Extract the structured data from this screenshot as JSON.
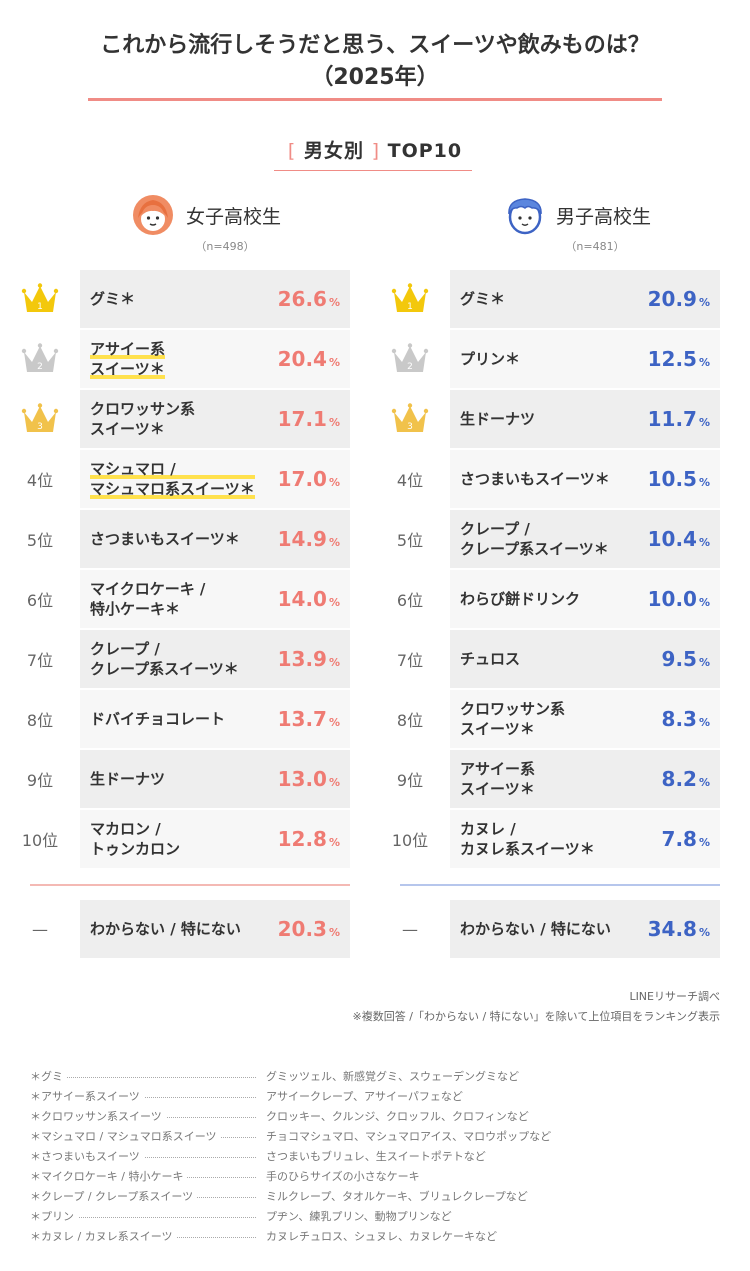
{
  "title_line1": "これから流行しそうだと思う、スイーツや飲みものは？",
  "title_line2": "（2025年）",
  "subhead": {
    "open": "[",
    "label": "男女別",
    "close": "]",
    "rest": "TOP10"
  },
  "colors": {
    "girls": "#ef7b73",
    "boys": "#3d63c4",
    "gold": "#f3c80c",
    "silver": "#c9c9c9",
    "bronze": "#f1c24b"
  },
  "chart_data": [
    {
      "type": "table",
      "title": "女子高校生",
      "n_label": "（n=498）",
      "unit": "%",
      "rows": [
        {
          "rank": "1",
          "rank_icon": "gold-crown-icon",
          "lines": [
            "グミ＊"
          ],
          "value": 26.6
        },
        {
          "rank": "2",
          "rank_icon": "silver-crown-icon",
          "lines": [
            "アサイー系",
            "スイーツ＊"
          ],
          "value": 20.4
        },
        {
          "rank": "3",
          "rank_icon": "bronze-crown-icon",
          "lines": [
            "クロワッサン系",
            "スイーツ＊"
          ],
          "value": 17.1
        },
        {
          "rank": "4位",
          "lines": [
            "マシュマロ /",
            "マシュマロ系スイーツ＊"
          ],
          "value": 17.0
        },
        {
          "rank": "5位",
          "lines": [
            "さつまいもスイーツ＊"
          ],
          "value": 14.9
        },
        {
          "rank": "6位",
          "lines": [
            "マイクロケーキ /",
            "特小ケーキ＊"
          ],
          "value": 14.0
        },
        {
          "rank": "7位",
          "lines": [
            "クレープ /",
            "クレープ系スイーツ＊"
          ],
          "value": 13.9
        },
        {
          "rank": "8位",
          "lines": [
            "ドバイチョコレート"
          ],
          "value": 13.7
        },
        {
          "rank": "9位",
          "lines": [
            "生ドーナツ"
          ],
          "value": 13.0
        },
        {
          "rank": "10位",
          "lines": [
            "マカロン /",
            "トゥンカロン"
          ],
          "value": 12.8
        }
      ],
      "dontknow": {
        "rank": "—",
        "label": "わからない / 特にない",
        "value": 20.3
      }
    },
    {
      "type": "table",
      "title": "男子高校生",
      "n_label": "（n=481）",
      "unit": "%",
      "rows": [
        {
          "rank": "1",
          "rank_icon": "gold-crown-icon",
          "lines": [
            "グミ＊"
          ],
          "value": 20.9
        },
        {
          "rank": "2",
          "rank_icon": "silver-crown-icon",
          "lines": [
            "プリン＊"
          ],
          "value": 12.5
        },
        {
          "rank": "3",
          "rank_icon": "bronze-crown-icon",
          "lines": [
            "生ドーナツ"
          ],
          "value": 11.7
        },
        {
          "rank": "4位",
          "lines": [
            "さつまいもスイーツ＊"
          ],
          "value": 10.5
        },
        {
          "rank": "5位",
          "lines": [
            "クレープ /",
            "クレープ系スイーツ＊"
          ],
          "value": 10.4
        },
        {
          "rank": "6位",
          "lines": [
            "わらび餅ドリンク"
          ],
          "value": 10.0
        },
        {
          "rank": "7位",
          "lines": [
            "チュロス"
          ],
          "value": 9.5
        },
        {
          "rank": "8位",
          "lines": [
            "クロワッサン系",
            "スイーツ＊"
          ],
          "value": 8.3
        },
        {
          "rank": "9位",
          "lines": [
            "アサイー系",
            "スイーツ＊"
          ],
          "value": 8.2
        },
        {
          "rank": "10位",
          "lines": [
            "カヌレ /",
            "カヌレ系スイーツ＊"
          ],
          "value": 7.8
        }
      ],
      "dontknow": {
        "rank": "—",
        "label": "わからない / 特にない",
        "value": 34.8
      }
    }
  ],
  "credit": "LINEリサーチ調べ",
  "note": "※複数回答 /「わからない / 特にない」を除いて上位項目をランキング表示",
  "definitions": [
    {
      "term": "＊グミ",
      "desc": "グミッツェル、新感覚グミ、スウェーデングミなど"
    },
    {
      "term": "＊アサイー系スイーツ",
      "desc": "アサイークレープ、アサイーパフェなど"
    },
    {
      "term": "＊クロワッサン系スイーツ",
      "desc": "クロッキー、クルンジ、クロッフル、クロフィンなど"
    },
    {
      "term": "＊マシュマロ / マシュマロ系スイーツ",
      "desc": "チョコマシュマロ、マシュマロアイス、マロウポップなど"
    },
    {
      "term": "＊さつまいもスイーツ",
      "desc": "さつまいもブリュレ、生スイートポテトなど"
    },
    {
      "term": "＊マイクロケーキ / 特小ケーキ",
      "desc": "手のひらサイズの小さなケーキ"
    },
    {
      "term": "＊クレープ / クレープ系スイーツ",
      "desc": "ミルクレープ、タオルケーキ、ブリュレクレープなど"
    },
    {
      "term": "＊プリン",
      "desc": "プヂン、練乳プリン、動物プリンなど"
    },
    {
      "term": "＊カヌレ / カヌレ系スイーツ",
      "desc": "カヌレチュロス、シュヌレ、カヌレケーキなど"
    }
  ]
}
